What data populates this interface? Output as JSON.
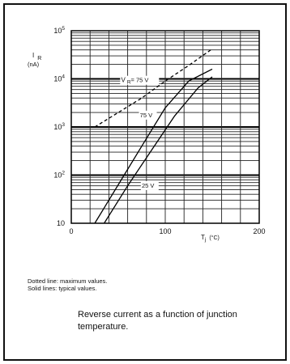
{
  "chart_data": {
    "type": "line",
    "ylabel_symbol": "I",
    "ylabel_sub": "R",
    "ylabel_unit": "(nA)",
    "xlabel_symbol": "T",
    "xlabel_sub": "j",
    "xlabel_unit": "(°C)",
    "x_ticks": [
      {
        "value": 0,
        "label": "0"
      },
      {
        "value": 100,
        "label": "100"
      },
      {
        "value": 200,
        "label": "200"
      }
    ],
    "y_ticks": [
      {
        "value": 10,
        "label": "10",
        "exp": ""
      },
      {
        "value": 100,
        "label": "10",
        "exp": "2"
      },
      {
        "value": 1000,
        "label": "10",
        "exp": "3"
      },
      {
        "value": 10000,
        "label": "10",
        "exp": "4"
      },
      {
        "value": 100000,
        "label": "10",
        "exp": "5"
      }
    ],
    "xlim": [
      0,
      200
    ],
    "ylim": [
      10,
      100000
    ],
    "y_scale": "log",
    "grid": true,
    "series": [
      {
        "label": "V R = 75 V",
        "style": "dashed",
        "x": [
          25,
          50,
          75,
          100,
          125,
          150
        ],
        "y": [
          1000,
          2000,
          4000,
          9000,
          19000,
          42000
        ]
      },
      {
        "label": "75 V",
        "style": "solid",
        "x": [
          25,
          50,
          75,
          100,
          125,
          150
        ],
        "y": [
          10,
          63,
          400,
          2500,
          9000,
          16000
        ]
      },
      {
        "label": "25 V",
        "style": "solid",
        "x": [
          35,
          60,
          85,
          110,
          135,
          150
        ],
        "y": [
          10,
          60,
          320,
          1700,
          6500,
          11000
        ]
      }
    ],
    "labels": {
      "vr_prefix": "V",
      "vr_sub": "R",
      "vr_value": "= 75 V",
      "l75": "75 V",
      "l25": "25 V"
    }
  },
  "notes": {
    "dotted": "Dotted line: maximum values.",
    "solid": "Solid lines: typical values."
  },
  "caption": "Reverse current as a function of junction temperature."
}
